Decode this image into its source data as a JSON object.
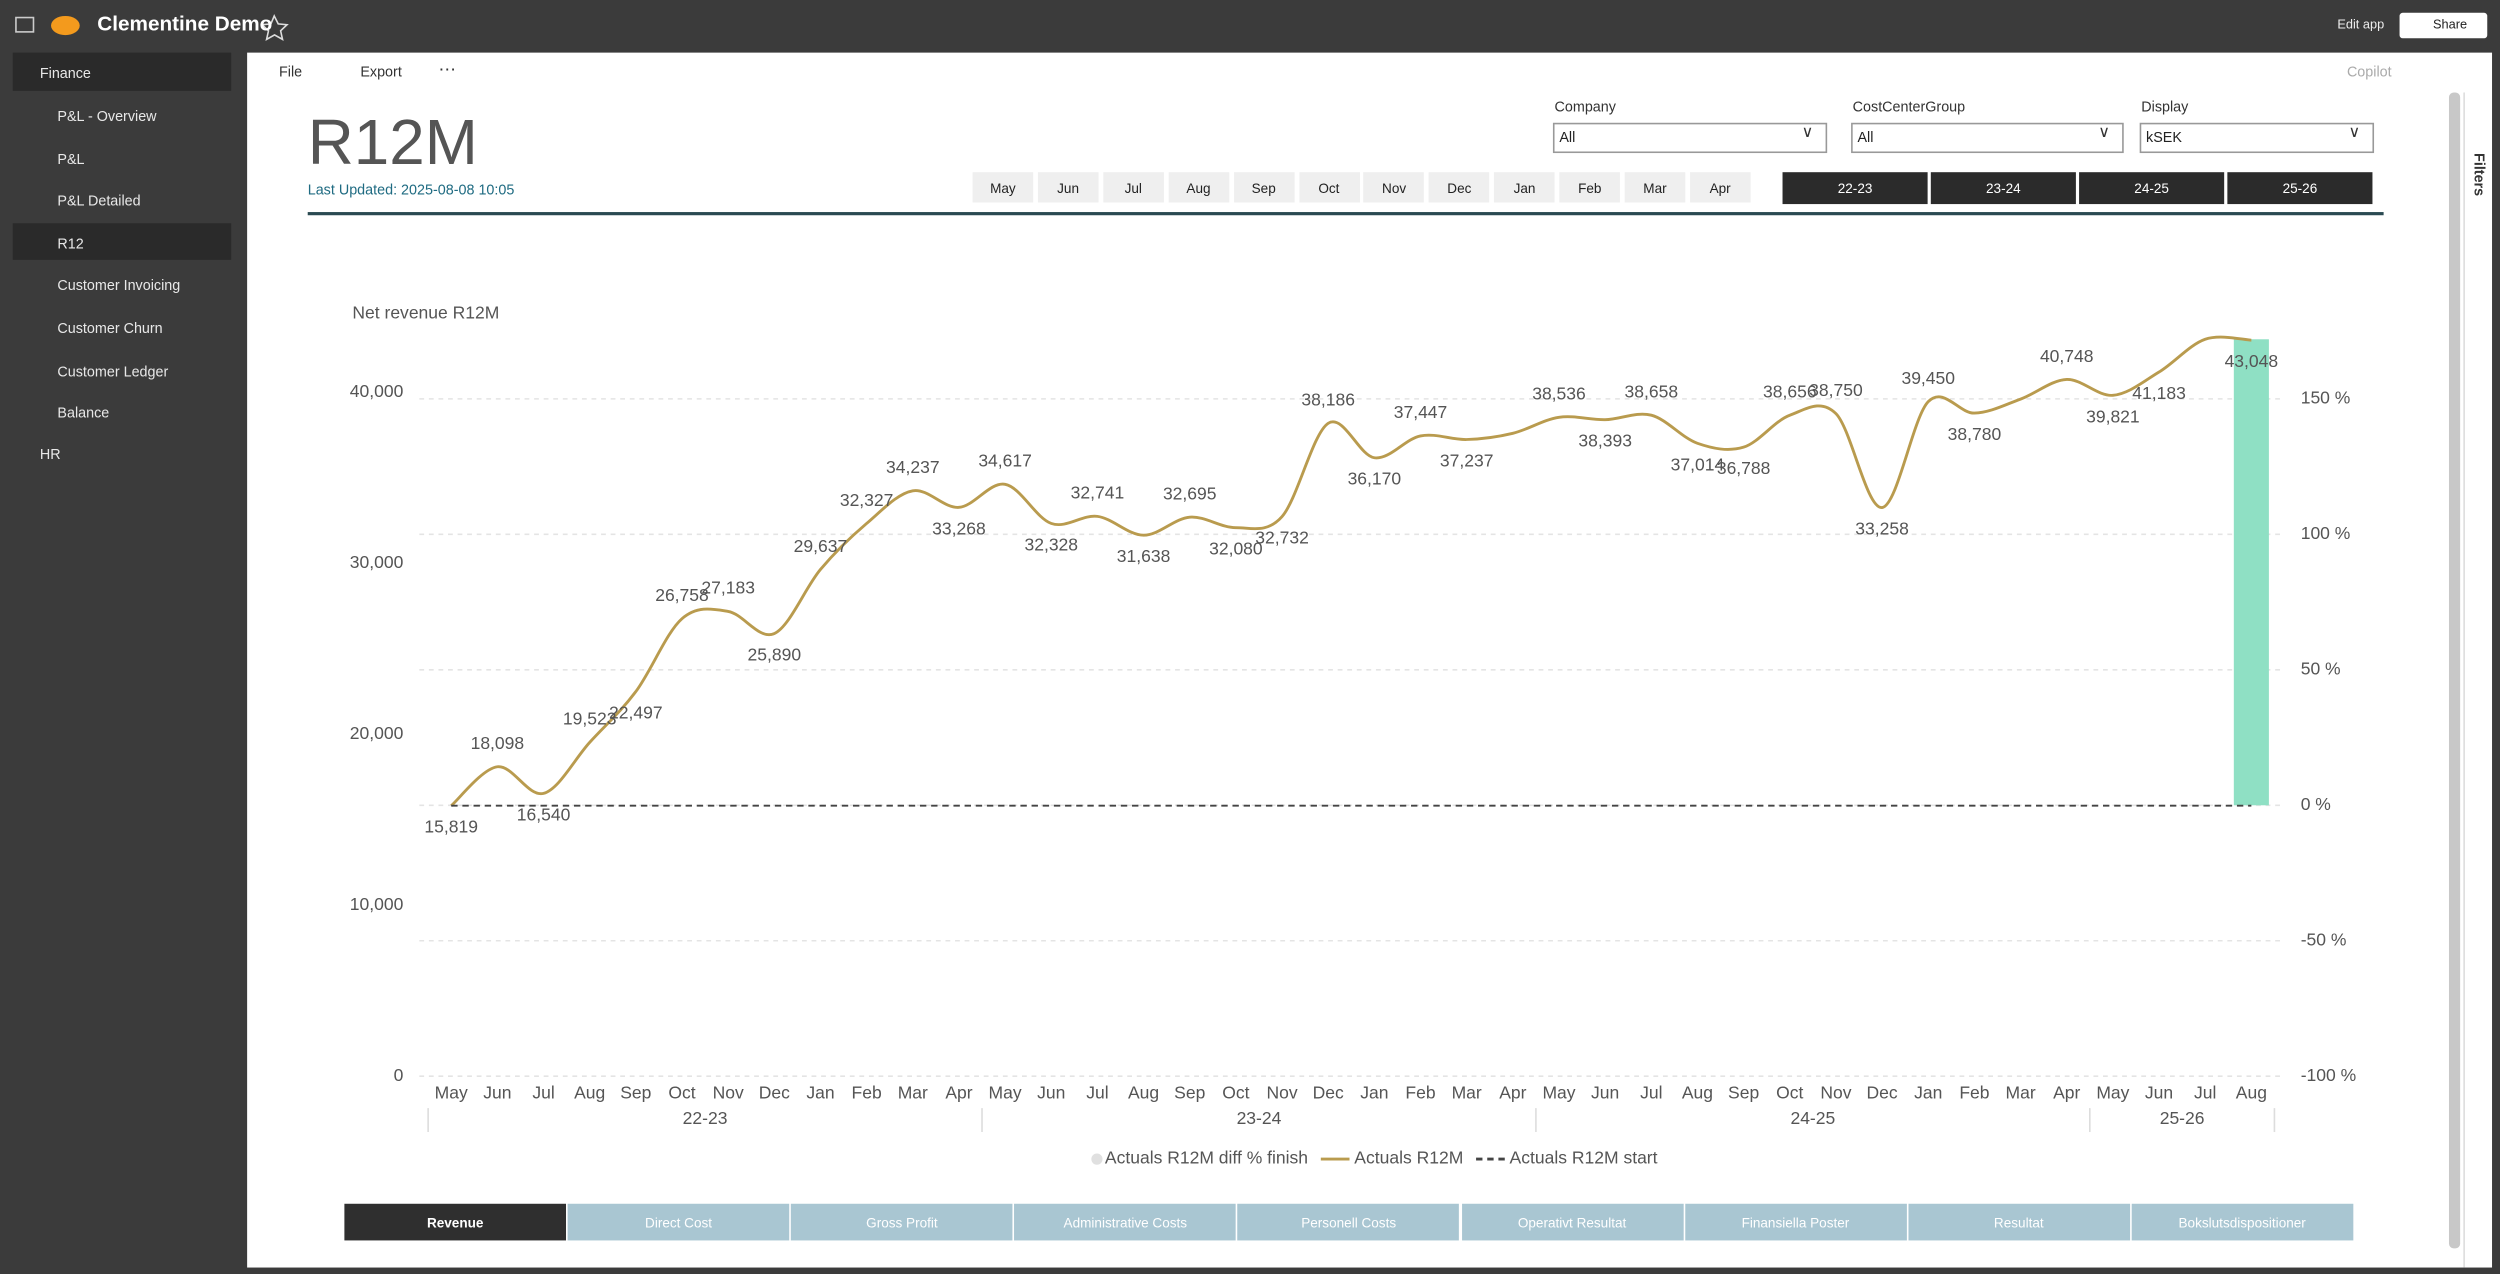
{
  "header": {
    "title": "Clementine Demo",
    "edit": "Edit app",
    "share": "Share"
  },
  "sidebar": {
    "section": "Finance",
    "items": [
      "P&L - Overview",
      "P&L",
      "P&L Detailed",
      "R12",
      "Customer Invoicing",
      "Customer Churn",
      "Customer Ledger",
      "Balance"
    ],
    "selected": "R12",
    "other": "HR"
  },
  "toolbar": {
    "file": "File",
    "export": "Export",
    "copilot": "Copilot"
  },
  "report": {
    "title": "R12M",
    "last_updated": "Last Updated: 2025-08-08 10:05",
    "filters": [
      {
        "label": "Company",
        "value": "All"
      },
      {
        "label": "CostCenterGroup",
        "value": "All"
      },
      {
        "label": "Display",
        "value": "kSEK"
      }
    ],
    "months": [
      "May",
      "Jun",
      "Jul",
      "Aug",
      "Sep",
      "Oct",
      "Nov",
      "Dec",
      "Jan",
      "Feb",
      "Mar",
      "Apr"
    ],
    "years": [
      "22-23",
      "23-24",
      "24-25",
      "25-26"
    ]
  },
  "chart_data": {
    "type": "line",
    "title": "Net revenue R12M",
    "categories": [
      "May",
      "Jun",
      "Jul",
      "Aug",
      "Sep",
      "Oct",
      "Nov",
      "Dec",
      "Jan",
      "Feb",
      "Mar",
      "Apr",
      "May",
      "Jun",
      "Jul",
      "Aug",
      "Sep",
      "Oct",
      "Nov",
      "Dec",
      "Jan",
      "Feb",
      "Mar",
      "Apr",
      "May",
      "Jun",
      "Jul",
      "Aug",
      "Sep",
      "Oct",
      "Nov",
      "Dec",
      "Jan",
      "Feb",
      "Mar",
      "Apr",
      "May",
      "Jun",
      "Jul",
      "Aug"
    ],
    "x_groups": [
      "22-23",
      "23-24",
      "24-25",
      "25-26"
    ],
    "series": [
      {
        "name": "Actuals R12M diff % finish",
        "type": "bar",
        "axis": "y2",
        "color": "#8fe0c4",
        "legend_color": "#e0e0e0",
        "values": [
          null,
          null,
          null,
          null,
          null,
          null,
          null,
          null,
          null,
          null,
          null,
          null,
          null,
          null,
          null,
          null,
          null,
          null,
          null,
          null,
          null,
          null,
          null,
          null,
          null,
          null,
          null,
          null,
          null,
          null,
          null,
          null,
          null,
          null,
          null,
          null,
          null,
          null,
          null,
          172
        ]
      },
      {
        "name": "Actuals R12M",
        "type": "line",
        "color": "#b99b4e",
        "values": [
          15819,
          18098,
          16540,
          19523,
          22497,
          26758,
          27183,
          25890,
          29637,
          32327,
          34237,
          33268,
          34617,
          32328,
          32741,
          31638,
          32695,
          32080,
          32732,
          38186,
          36170,
          37447,
          37237,
          37600,
          38536,
          38393,
          38658,
          37014,
          36788,
          38656,
          38750,
          33258,
          39450,
          38780,
          39600,
          40748,
          39821,
          41183,
          43100,
          43048
        ],
        "value_labels": [
          "15,819",
          "18,098",
          "16,540",
          "19,523",
          "22,497",
          "26,758",
          "27,183",
          "25,890",
          "29,637",
          "32,327",
          "34,237",
          "33,268",
          "34,617",
          "32,328",
          "32,741",
          "31,638",
          "32,695",
          "32,080",
          "32,732",
          "38,186",
          "36,170",
          "37,447",
          "37,237",
          null,
          "38,536",
          "38,393",
          "38,658",
          "37,014",
          "36,788",
          "38,656",
          "38,750",
          "33,258",
          "39,450",
          "38,780",
          null,
          "40,748",
          "39,821",
          "41,183",
          null,
          "43,048"
        ]
      },
      {
        "name": "Actuals R12M start",
        "type": "line",
        "dashed": true,
        "color": "#444444",
        "values": [
          15819,
          15819,
          15819,
          15819,
          15819,
          15819,
          15819,
          15819,
          15819,
          15819,
          15819,
          15819,
          15819,
          15819,
          15819,
          15819,
          15819,
          15819,
          15819,
          15819,
          15819,
          15819,
          15819,
          15819,
          15819,
          15819,
          15819,
          15819,
          15819,
          15819,
          15819,
          15819,
          15819,
          15819,
          15819,
          15819,
          15819,
          15819,
          15819,
          15819
        ]
      }
    ],
    "ylim": [
      0,
      45000
    ],
    "yticks": [
      0,
      {
        "value": 10000,
        "label": "10,000"
      },
      {
        "value": 20000,
        "label": "20,000"
      },
      {
        "value": 30000,
        "label": "30,000"
      },
      {
        "value": 40000,
        "label": "40,000"
      }
    ],
    "y2lim": [
      -100,
      184
    ],
    "y2ticks": [
      {
        "value": -100,
        "label": "-100 %"
      },
      {
        "value": -50,
        "label": "-50 %"
      },
      {
        "value": 0,
        "label": "0 %"
      },
      {
        "value": 50,
        "label": "50 %"
      },
      {
        "value": 100,
        "label": "100 %"
      },
      {
        "value": 150,
        "label": "150 %"
      }
    ],
    "grid": true,
    "legend": "bottom"
  },
  "tabs": [
    "Revenue",
    "Direct Cost",
    "Gross Profit",
    "Administrative Costs",
    "Personell Costs",
    "Operativt Resultat",
    "Finansiella Poster",
    "Resultat",
    "Bokslutsdispositioner"
  ],
  "filters_pane": "Filters"
}
